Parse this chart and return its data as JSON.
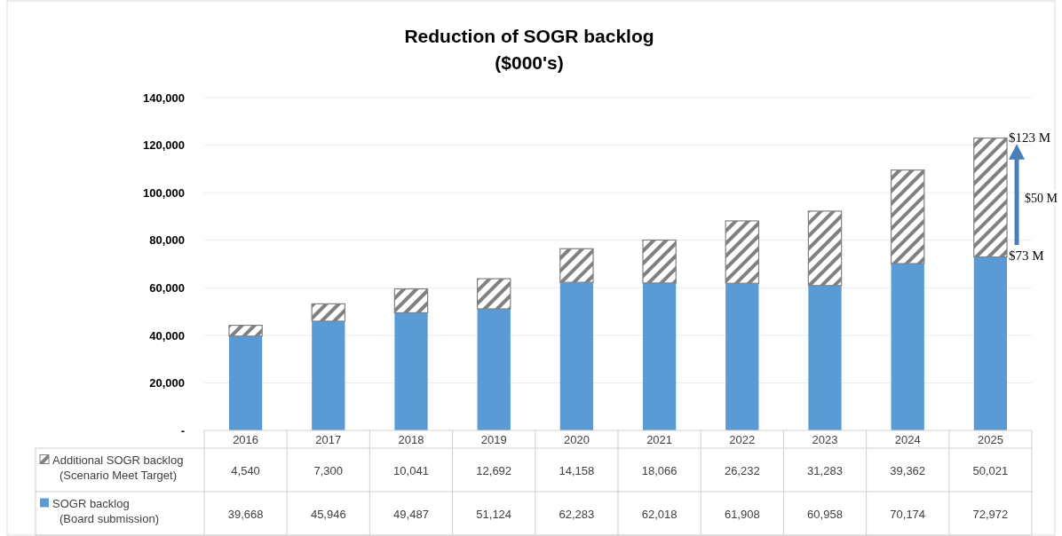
{
  "chart_data": {
    "type": "bar",
    "title": "Reduction of SOGR backlog",
    "subtitle": "($000's)",
    "stacked": true,
    "categories": [
      "2016",
      "2017",
      "2018",
      "2019",
      "2020",
      "2021",
      "2022",
      "2023",
      "2024",
      "2025"
    ],
    "series": [
      {
        "name": "SOGR backlog (Board submission)",
        "color": "#5b9bd5",
        "values": [
          39668,
          45946,
          49487,
          51124,
          62283,
          62018,
          61908,
          60958,
          70174,
          72972
        ],
        "value_labels": [
          "39,668",
          "45,946",
          "49,487",
          "51,124",
          "62,283",
          "62,018",
          "61,908",
          "60,958",
          "70,174",
          "72,972"
        ]
      },
      {
        "name": "Additional SOGR backlog (Scenario Meet Target)",
        "color": "#808080",
        "values": [
          4540,
          7300,
          10041,
          12692,
          14158,
          18066,
          26232,
          31283,
          39362,
          50021
        ],
        "value_labels": [
          "4,540",
          "7,300",
          "10,041",
          "12,692",
          "14,158",
          "18,066",
          "26,232",
          "31,283",
          "39,362",
          "50,021"
        ]
      }
    ],
    "ylim": [
      0,
      140000
    ],
    "yticks": [
      {
        "value": 0,
        "label": "-"
      },
      {
        "value": 20000,
        "label": "20,000"
      },
      {
        "value": 40000,
        "label": "40,000"
      },
      {
        "value": 60000,
        "label": "60,000"
      },
      {
        "value": 80000,
        "label": "80,000"
      },
      {
        "value": 100000,
        "label": "100,000"
      },
      {
        "value": 120000,
        "label": "120,000"
      },
      {
        "value": 140000,
        "label": "140,000"
      }
    ],
    "grid": "y",
    "legend": "bottom",
    "annotations": [
      {
        "text": "$123 M",
        "x": "2025",
        "y": 123000
      },
      {
        "text": "$73 M",
        "x": "2025",
        "y": 73000
      },
      "$50 M"
    ]
  }
}
